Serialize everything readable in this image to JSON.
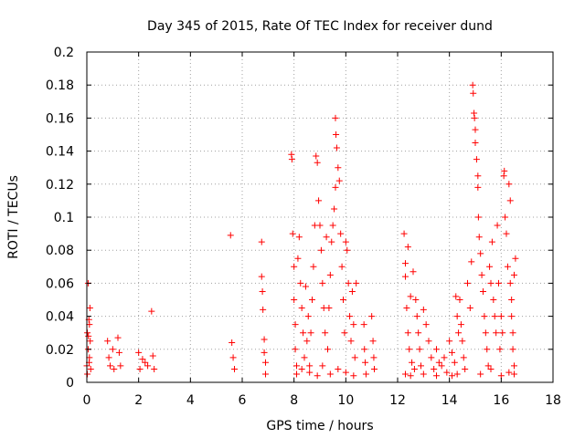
{
  "chart_data": {
    "type": "scatter",
    "title": "Day 345 of 2015, Rate Of TEC Index for receiver dund",
    "xlabel": "GPS time / hours",
    "ylabel": "ROTI / TECUs",
    "xlim": [
      0,
      18
    ],
    "ylim": [
      0,
      0.2
    ],
    "xticks": [
      0,
      2,
      4,
      6,
      8,
      10,
      12,
      14,
      16,
      18
    ],
    "yticks": [
      0,
      0.02,
      0.04,
      0.06,
      0.08,
      0.1,
      0.12,
      0.14,
      0.16,
      0.18,
      0.2
    ],
    "grid": true,
    "marker": "+",
    "color": "#ff0000",
    "series": [
      {
        "name": "ROTI",
        "points": [
          [
            0.0,
            0.01
          ],
          [
            0.02,
            0.03
          ],
          [
            0.05,
            0.06
          ],
          [
            0.05,
            0.02
          ],
          [
            0.08,
            0.038
          ],
          [
            0.1,
            0.035
          ],
          [
            0.1,
            0.015
          ],
          [
            0.12,
            0.045
          ],
          [
            0.13,
            0.025
          ],
          [
            0.15,
            0.008
          ],
          [
            0.02,
            0.005
          ],
          [
            0.06,
            0.028
          ],
          [
            0.09,
            0.012
          ],
          [
            0.8,
            0.025
          ],
          [
            0.85,
            0.015
          ],
          [
            0.9,
            0.01
          ],
          [
            1.0,
            0.02
          ],
          [
            1.05,
            0.008
          ],
          [
            1.2,
            0.027
          ],
          [
            1.25,
            0.018
          ],
          [
            1.3,
            0.01
          ],
          [
            2.0,
            0.018
          ],
          [
            2.05,
            0.008
          ],
          [
            2.15,
            0.014
          ],
          [
            2.25,
            0.012
          ],
          [
            2.35,
            0.01
          ],
          [
            2.5,
            0.043
          ],
          [
            2.55,
            0.016
          ],
          [
            2.6,
            0.008
          ],
          [
            5.55,
            0.089
          ],
          [
            5.6,
            0.024
          ],
          [
            5.65,
            0.015
          ],
          [
            5.7,
            0.008
          ],
          [
            6.75,
            0.085
          ],
          [
            6.75,
            0.064
          ],
          [
            6.78,
            0.055
          ],
          [
            6.8,
            0.044
          ],
          [
            6.85,
            0.026
          ],
          [
            6.85,
            0.018
          ],
          [
            6.9,
            0.012
          ],
          [
            6.9,
            0.005
          ],
          [
            7.9,
            0.138
          ],
          [
            7.92,
            0.135
          ],
          [
            7.95,
            0.09
          ],
          [
            8.0,
            0.07
          ],
          [
            8.0,
            0.05
          ],
          [
            8.05,
            0.035
          ],
          [
            8.05,
            0.02
          ],
          [
            8.1,
            0.01
          ],
          [
            8.15,
            0.075
          ],
          [
            8.2,
            0.088
          ],
          [
            8.25,
            0.06
          ],
          [
            8.3,
            0.045
          ],
          [
            8.35,
            0.03
          ],
          [
            8.4,
            0.015
          ],
          [
            8.45,
            0.058
          ],
          [
            8.5,
            0.025
          ],
          [
            8.55,
            0.04
          ],
          [
            8.6,
            0.01
          ],
          [
            8.65,
            0.03
          ],
          [
            8.7,
            0.05
          ],
          [
            8.75,
            0.07
          ],
          [
            8.8,
            0.095
          ],
          [
            8.85,
            0.137
          ],
          [
            8.9,
            0.133
          ],
          [
            8.95,
            0.11
          ],
          [
            9.0,
            0.095
          ],
          [
            9.05,
            0.08
          ],
          [
            9.1,
            0.06
          ],
          [
            9.15,
            0.045
          ],
          [
            9.2,
            0.03
          ],
          [
            9.3,
            0.02
          ],
          [
            9.35,
            0.045
          ],
          [
            9.4,
            0.065
          ],
          [
            9.45,
            0.085
          ],
          [
            9.5,
            0.095
          ],
          [
            9.55,
            0.105
          ],
          [
            9.6,
            0.118
          ],
          [
            9.6,
            0.16
          ],
          [
            9.62,
            0.15
          ],
          [
            9.65,
            0.142
          ],
          [
            9.7,
            0.13
          ],
          [
            9.75,
            0.122
          ],
          [
            9.8,
            0.09
          ],
          [
            9.85,
            0.07
          ],
          [
            9.9,
            0.05
          ],
          [
            9.95,
            0.03
          ],
          [
            10.0,
            0.085
          ],
          [
            10.05,
            0.08
          ],
          [
            10.1,
            0.06
          ],
          [
            10.15,
            0.04
          ],
          [
            10.2,
            0.025
          ],
          [
            10.25,
            0.055
          ],
          [
            10.3,
            0.035
          ],
          [
            10.35,
            0.015
          ],
          [
            10.4,
            0.06
          ],
          [
            8.1,
            0.005
          ],
          [
            8.3,
            0.008
          ],
          [
            8.6,
            0.006
          ],
          [
            8.9,
            0.004
          ],
          [
            9.1,
            0.01
          ],
          [
            9.4,
            0.005
          ],
          [
            9.7,
            0.008
          ],
          [
            10.0,
            0.006
          ],
          [
            10.3,
            0.004
          ],
          [
            9.25,
            0.088
          ],
          [
            10.7,
            0.035
          ],
          [
            10.72,
            0.02
          ],
          [
            10.75,
            0.012
          ],
          [
            10.78,
            0.005
          ],
          [
            11.0,
            0.04
          ],
          [
            11.05,
            0.025
          ],
          [
            11.08,
            0.015
          ],
          [
            11.1,
            0.008
          ],
          [
            12.25,
            0.09
          ],
          [
            12.3,
            0.072
          ],
          [
            12.3,
            0.064
          ],
          [
            12.35,
            0.045
          ],
          [
            12.4,
            0.03
          ],
          [
            12.45,
            0.02
          ],
          [
            12.5,
            0.052
          ],
          [
            12.55,
            0.012
          ],
          [
            12.6,
            0.067
          ],
          [
            12.65,
            0.008
          ],
          [
            12.7,
            0.05
          ],
          [
            12.75,
            0.04
          ],
          [
            12.8,
            0.03
          ],
          [
            12.85,
            0.02
          ],
          [
            12.9,
            0.01
          ],
          [
            13.0,
            0.044
          ],
          [
            13.1,
            0.035
          ],
          [
            13.2,
            0.025
          ],
          [
            13.3,
            0.015
          ],
          [
            13.4,
            0.008
          ],
          [
            13.5,
            0.02
          ],
          [
            13.6,
            0.012
          ],
          [
            13.7,
            0.01
          ],
          [
            13.8,
            0.015
          ],
          [
            13.9,
            0.006
          ],
          [
            14.0,
            0.025
          ],
          [
            14.1,
            0.018
          ],
          [
            14.2,
            0.012
          ],
          [
            14.3,
            0.005
          ],
          [
            12.4,
            0.082
          ],
          [
            14.25,
            0.052
          ],
          [
            14.3,
            0.04
          ],
          [
            14.35,
            0.03
          ],
          [
            14.4,
            0.05
          ],
          [
            14.45,
            0.035
          ],
          [
            14.5,
            0.025
          ],
          [
            14.55,
            0.015
          ],
          [
            14.6,
            0.008
          ],
          [
            14.7,
            0.06
          ],
          [
            14.8,
            0.045
          ],
          [
            14.85,
            0.073
          ],
          [
            14.9,
            0.18
          ],
          [
            14.92,
            0.175
          ],
          [
            14.95,
            0.163
          ],
          [
            14.97,
            0.16
          ],
          [
            15.0,
            0.153
          ],
          [
            15.0,
            0.145
          ],
          [
            15.05,
            0.135
          ],
          [
            15.1,
            0.125
          ],
          [
            15.1,
            0.118
          ],
          [
            15.12,
            0.1
          ],
          [
            15.15,
            0.088
          ],
          [
            15.2,
            0.078
          ],
          [
            15.25,
            0.065
          ],
          [
            15.3,
            0.055
          ],
          [
            15.35,
            0.04
          ],
          [
            15.4,
            0.03
          ],
          [
            15.45,
            0.02
          ],
          [
            15.5,
            0.01
          ],
          [
            15.55,
            0.07
          ],
          [
            15.6,
            0.06
          ],
          [
            15.65,
            0.085
          ],
          [
            15.7,
            0.05
          ],
          [
            15.75,
            0.04
          ],
          [
            15.8,
            0.03
          ],
          [
            15.85,
            0.095
          ],
          [
            15.9,
            0.06
          ],
          [
            15.95,
            0.02
          ],
          [
            16.0,
            0.04
          ],
          [
            16.05,
            0.03
          ],
          [
            16.1,
            0.125
          ],
          [
            16.12,
            0.128
          ],
          [
            16.15,
            0.1
          ],
          [
            16.2,
            0.09
          ],
          [
            16.25,
            0.07
          ],
          [
            16.3,
            0.12
          ],
          [
            16.35,
            0.11
          ],
          [
            16.35,
            0.06
          ],
          [
            16.4,
            0.05
          ],
          [
            16.4,
            0.04
          ],
          [
            16.45,
            0.03
          ],
          [
            16.45,
            0.02
          ],
          [
            16.5,
            0.01
          ],
          [
            16.5,
            0.065
          ],
          [
            16.55,
            0.075
          ],
          [
            15.2,
            0.005
          ],
          [
            15.6,
            0.008
          ],
          [
            16.0,
            0.004
          ],
          [
            16.3,
            0.006
          ],
          [
            14.1,
            0.004
          ],
          [
            12.3,
            0.005
          ],
          [
            12.5,
            0.004
          ],
          [
            13.0,
            0.005
          ],
          [
            13.5,
            0.004
          ],
          [
            16.5,
            0.005
          ]
        ]
      }
    ]
  }
}
